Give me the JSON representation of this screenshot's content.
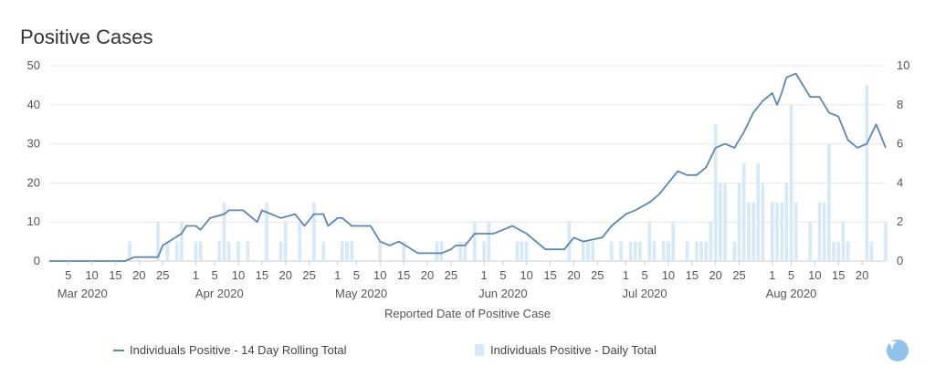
{
  "title": "Positive Cases",
  "filter_icon": "filter-icon",
  "chart_data": {
    "type": "bar+line",
    "xlabel": "Reported Date of Positive Case",
    "ylabel_left": "",
    "ylabel_right": "",
    "ylim_left": [
      0,
      50
    ],
    "ylim_right": [
      0,
      10
    ],
    "left_ticks": [
      "0",
      "10",
      "20",
      "30",
      "40",
      "50"
    ],
    "right_ticks": [
      "0",
      "2",
      "4",
      "6",
      "8",
      "10"
    ],
    "grid": true,
    "legend_position": "bottom",
    "x_tick_labels": [
      "5",
      "10",
      "15",
      "20",
      "25",
      "1",
      "5",
      "10",
      "15",
      "20",
      "25",
      "1",
      "5",
      "10",
      "15",
      "20",
      "25",
      "1",
      "5",
      "10",
      "15",
      "20",
      "25",
      "1",
      "5",
      "10",
      "15",
      "20",
      "25",
      "1",
      "5",
      "10",
      "15",
      "20"
    ],
    "x_tick_dates": [
      "2020-03-05",
      "2020-03-10",
      "2020-03-15",
      "2020-03-20",
      "2020-03-25",
      "2020-04-01",
      "2020-04-05",
      "2020-04-10",
      "2020-04-15",
      "2020-04-20",
      "2020-04-25",
      "2020-05-01",
      "2020-05-05",
      "2020-05-10",
      "2020-05-15",
      "2020-05-20",
      "2020-05-25",
      "2020-06-01",
      "2020-06-05",
      "2020-06-10",
      "2020-06-15",
      "2020-06-20",
      "2020-06-25",
      "2020-07-01",
      "2020-07-05",
      "2020-07-10",
      "2020-07-15",
      "2020-07-20",
      "2020-07-25",
      "2020-08-01",
      "2020-08-05",
      "2020-08-10",
      "2020-08-15",
      "2020-08-20"
    ],
    "month_labels": [
      "Mar 2020",
      "Apr 2020",
      "May 2020",
      "Jun 2020",
      "Jul 2020",
      "Aug 2020"
    ],
    "month_label_dates": [
      "2020-03-08",
      "2020-04-06",
      "2020-05-06",
      "2020-06-05",
      "2020-07-05",
      "2020-08-05"
    ],
    "series": [
      {
        "name": "Individuals Positive - 14 Day Rolling Total",
        "type": "line",
        "axis": "left",
        "color": "#5b87b4",
        "points": [
          [
            "2020-03-01",
            0
          ],
          [
            "2020-03-17",
            0
          ],
          [
            "2020-03-19",
            1
          ],
          [
            "2020-03-24",
            1
          ],
          [
            "2020-03-25",
            4
          ],
          [
            "2020-03-29",
            7
          ],
          [
            "2020-03-30",
            9
          ],
          [
            "2020-04-01",
            9
          ],
          [
            "2020-04-02",
            8
          ],
          [
            "2020-04-04",
            11
          ],
          [
            "2020-04-07",
            12
          ],
          [
            "2020-04-08",
            13
          ],
          [
            "2020-04-11",
            13
          ],
          [
            "2020-04-14",
            10
          ],
          [
            "2020-04-15",
            13
          ],
          [
            "2020-04-19",
            11
          ],
          [
            "2020-04-22",
            12
          ],
          [
            "2020-04-24",
            9
          ],
          [
            "2020-04-26",
            12
          ],
          [
            "2020-04-28",
            12
          ],
          [
            "2020-04-29",
            9
          ],
          [
            "2020-05-01",
            11
          ],
          [
            "2020-05-02",
            11
          ],
          [
            "2020-05-04",
            9
          ],
          [
            "2020-05-08",
            9
          ],
          [
            "2020-05-10",
            5
          ],
          [
            "2020-05-12",
            4
          ],
          [
            "2020-05-14",
            5
          ],
          [
            "2020-05-18",
            2
          ],
          [
            "2020-05-23",
            2
          ],
          [
            "2020-05-25",
            3
          ],
          [
            "2020-05-26",
            4
          ],
          [
            "2020-05-28",
            4
          ],
          [
            "2020-05-30",
            7
          ],
          [
            "2020-06-03",
            7
          ],
          [
            "2020-06-05",
            8
          ],
          [
            "2020-06-07",
            9
          ],
          [
            "2020-06-10",
            7
          ],
          [
            "2020-06-12",
            5
          ],
          [
            "2020-06-14",
            3
          ],
          [
            "2020-06-18",
            3
          ],
          [
            "2020-06-20",
            6
          ],
          [
            "2020-06-22",
            5
          ],
          [
            "2020-06-26",
            6
          ],
          [
            "2020-06-28",
            9
          ],
          [
            "2020-07-01",
            12
          ],
          [
            "2020-07-03",
            13
          ],
          [
            "2020-07-06",
            15
          ],
          [
            "2020-07-08",
            17
          ],
          [
            "2020-07-10",
            20
          ],
          [
            "2020-07-12",
            23
          ],
          [
            "2020-07-14",
            22
          ],
          [
            "2020-07-16",
            22
          ],
          [
            "2020-07-18",
            24
          ],
          [
            "2020-07-20",
            29
          ],
          [
            "2020-07-22",
            30
          ],
          [
            "2020-07-24",
            29
          ],
          [
            "2020-07-26",
            33
          ],
          [
            "2020-07-28",
            38
          ],
          [
            "2020-07-30",
            41
          ],
          [
            "2020-08-01",
            43
          ],
          [
            "2020-08-02",
            40
          ],
          [
            "2020-08-03",
            43
          ],
          [
            "2020-08-04",
            47
          ],
          [
            "2020-08-06",
            48
          ],
          [
            "2020-08-07",
            46
          ],
          [
            "2020-08-09",
            42
          ],
          [
            "2020-08-11",
            42
          ],
          [
            "2020-08-13",
            38
          ],
          [
            "2020-08-15",
            37
          ],
          [
            "2020-08-17",
            31
          ],
          [
            "2020-08-19",
            29
          ],
          [
            "2020-08-21",
            30
          ],
          [
            "2020-08-23",
            35
          ],
          [
            "2020-08-25",
            29
          ]
        ]
      },
      {
        "name": "Individuals Positive - Daily Total",
        "type": "bar",
        "axis": "right",
        "color": "#d6e9f8",
        "points": [
          [
            "2020-03-18",
            1
          ],
          [
            "2020-03-24",
            2
          ],
          [
            "2020-03-26",
            1
          ],
          [
            "2020-03-28",
            1
          ],
          [
            "2020-03-29",
            2
          ],
          [
            "2020-04-01",
            1
          ],
          [
            "2020-04-02",
            1
          ],
          [
            "2020-04-06",
            1
          ],
          [
            "2020-04-07",
            3
          ],
          [
            "2020-04-08",
            1
          ],
          [
            "2020-04-10",
            1
          ],
          [
            "2020-04-12",
            1
          ],
          [
            "2020-04-16",
            3
          ],
          [
            "2020-04-19",
            1
          ],
          [
            "2020-04-20",
            2
          ],
          [
            "2020-04-23",
            2
          ],
          [
            "2020-04-26",
            3
          ],
          [
            "2020-04-28",
            1
          ],
          [
            "2020-05-02",
            1
          ],
          [
            "2020-05-03",
            1
          ],
          [
            "2020-05-04",
            1
          ],
          [
            "2020-05-10",
            1
          ],
          [
            "2020-05-15",
            1
          ],
          [
            "2020-05-22",
            1
          ],
          [
            "2020-05-23",
            1
          ],
          [
            "2020-05-27",
            1
          ],
          [
            "2020-05-28",
            1
          ],
          [
            "2020-05-30",
            2
          ],
          [
            "2020-06-01",
            1
          ],
          [
            "2020-06-02",
            2
          ],
          [
            "2020-06-08",
            1
          ],
          [
            "2020-06-09",
            1
          ],
          [
            "2020-06-10",
            1
          ],
          [
            "2020-06-19",
            2
          ],
          [
            "2020-06-22",
            1
          ],
          [
            "2020-06-23",
            1
          ],
          [
            "2020-06-24",
            1
          ],
          [
            "2020-06-28",
            1
          ],
          [
            "2020-06-30",
            1
          ],
          [
            "2020-07-02",
            1
          ],
          [
            "2020-07-03",
            1
          ],
          [
            "2020-07-04",
            1
          ],
          [
            "2020-07-06",
            2
          ],
          [
            "2020-07-07",
            1
          ],
          [
            "2020-07-09",
            1
          ],
          [
            "2020-07-10",
            1
          ],
          [
            "2020-07-11",
            2
          ],
          [
            "2020-07-14",
            1
          ],
          [
            "2020-07-16",
            1
          ],
          [
            "2020-07-17",
            1
          ],
          [
            "2020-07-18",
            1
          ],
          [
            "2020-07-19",
            2
          ],
          [
            "2020-07-20",
            7
          ],
          [
            "2020-07-21",
            4
          ],
          [
            "2020-07-22",
            4
          ],
          [
            "2020-07-24",
            1
          ],
          [
            "2020-07-25",
            4
          ],
          [
            "2020-07-26",
            5
          ],
          [
            "2020-07-27",
            3
          ],
          [
            "2020-07-28",
            3
          ],
          [
            "2020-07-29",
            5
          ],
          [
            "2020-07-30",
            4
          ],
          [
            "2020-08-01",
            3
          ],
          [
            "2020-08-02",
            3
          ],
          [
            "2020-08-03",
            3
          ],
          [
            "2020-08-04",
            4
          ],
          [
            "2020-08-05",
            8
          ],
          [
            "2020-08-06",
            3
          ],
          [
            "2020-08-09",
            2
          ],
          [
            "2020-08-11",
            3
          ],
          [
            "2020-08-12",
            3
          ],
          [
            "2020-08-13",
            6
          ],
          [
            "2020-08-14",
            1
          ],
          [
            "2020-08-15",
            1
          ],
          [
            "2020-08-16",
            2
          ],
          [
            "2020-08-17",
            1
          ],
          [
            "2020-08-21",
            9
          ],
          [
            "2020-08-22",
            1
          ],
          [
            "2020-08-25",
            2
          ]
        ]
      }
    ]
  }
}
